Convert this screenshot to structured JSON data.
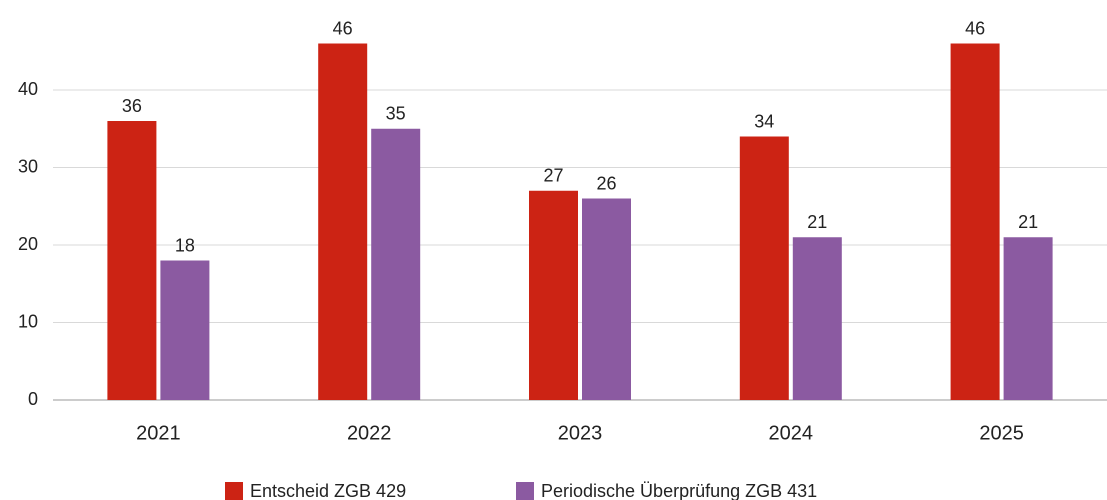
{
  "chart_data": {
    "type": "bar",
    "categories": [
      "2021",
      "2022",
      "2023",
      "2024",
      "2025"
    ],
    "series": [
      {
        "name": "Entscheid ZGB 429",
        "color": "#cc2314",
        "values": [
          36,
          46,
          27,
          34,
          46
        ]
      },
      {
        "name": "Periodische Überprüfung ZGB 431",
        "color": "#8b5aa1",
        "values": [
          18,
          35,
          26,
          21,
          21
        ]
      }
    ],
    "ylim": [
      0,
      50
    ],
    "yticks": [
      0,
      10,
      20,
      30,
      40
    ],
    "grid": true,
    "legend": "bottom"
  }
}
